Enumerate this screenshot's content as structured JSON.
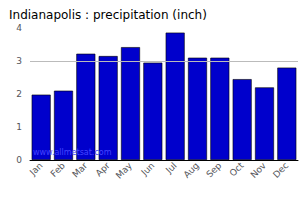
{
  "chart_data": {
    "type": "bar",
    "title": "Indianapolis : precipitation (inch)",
    "categories": [
      "Jan",
      "Feb",
      "Mar",
      "Apr",
      "May",
      "Jun",
      "Jul",
      "Aug",
      "Sep",
      "Oct",
      "Nov",
      "Dec"
    ],
    "values": [
      1.98,
      2.1,
      3.22,
      3.15,
      3.42,
      2.95,
      3.86,
      3.1,
      3.1,
      2.45,
      2.2,
      2.8
    ],
    "color": "#0000cc",
    "ylim": [
      0,
      4
    ],
    "yticks": [
      0,
      1,
      2,
      3,
      4
    ],
    "grid": false,
    "hline": 3,
    "annotation": "www.allmetsat.com"
  }
}
